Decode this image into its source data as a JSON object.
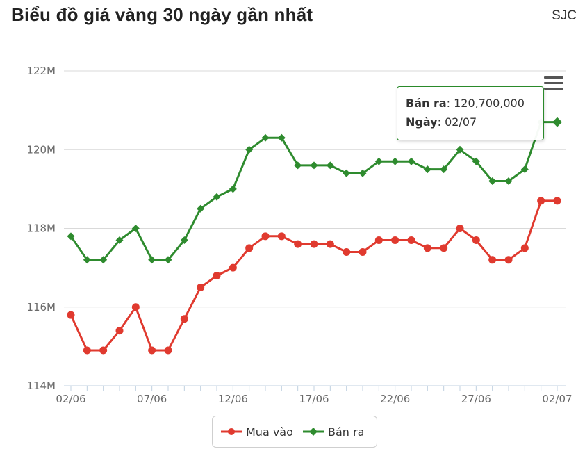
{
  "header": {
    "title": "Biểu đồ giá vàng 30 ngày gần nhất",
    "brand": "SJC"
  },
  "tooltip": {
    "series_label": "Bán ra",
    "value": "120,700,000",
    "date_label": "Ngày",
    "date": "02/07"
  },
  "colors": {
    "mua_vao": "#e03a2f",
    "ban_ra": "#2e8b2e",
    "grid": "#d9d9d9",
    "axis": "#b0c4de"
  },
  "chart_data": {
    "type": "line",
    "title": "Biểu đồ giá vàng 30 ngày gần nhất",
    "xlabel": "",
    "ylabel": "",
    "ylim": [
      114,
      122
    ],
    "y_unit": "M",
    "y_ticks": [
      "114M",
      "116M",
      "118M",
      "120M",
      "122M"
    ],
    "x_tick_labels": [
      "02/06",
      "07/06",
      "12/06",
      "17/06",
      "22/06",
      "27/06",
      "02/07"
    ],
    "x": [
      "02/06",
      "03/06",
      "04/06",
      "05/06",
      "06/06",
      "07/06",
      "08/06",
      "09/06",
      "10/06",
      "11/06",
      "12/06",
      "13/06",
      "14/06",
      "15/06",
      "16/06",
      "17/06",
      "18/06",
      "19/06",
      "20/06",
      "21/06",
      "22/06",
      "23/06",
      "24/06",
      "25/06",
      "26/06",
      "27/06",
      "28/06",
      "29/06",
      "30/06",
      "01/07",
      "02/07"
    ],
    "series": [
      {
        "name": "Mua vào",
        "color": "#e03a2f",
        "marker": "circle",
        "values": [
          115.8,
          114.9,
          114.9,
          115.4,
          116.0,
          114.9,
          114.9,
          115.7,
          116.5,
          116.8,
          117.0,
          117.5,
          117.8,
          117.8,
          117.6,
          117.6,
          117.6,
          117.4,
          117.4,
          117.7,
          117.7,
          117.7,
          117.5,
          117.5,
          118.0,
          117.7,
          117.2,
          117.2,
          117.5,
          118.7,
          118.7
        ]
      },
      {
        "name": "Bán ra",
        "color": "#2e8b2e",
        "marker": "diamond",
        "values": [
          117.8,
          117.2,
          117.2,
          117.7,
          118.0,
          117.2,
          117.2,
          117.7,
          118.5,
          118.8,
          119.0,
          120.0,
          120.3,
          120.3,
          119.6,
          119.6,
          119.6,
          119.4,
          119.4,
          119.7,
          119.7,
          119.7,
          119.5,
          119.5,
          120.0,
          119.7,
          119.2,
          119.2,
          119.5,
          120.7,
          120.7
        ]
      }
    ],
    "legend": [
      "Mua vào",
      "Bán ra"
    ],
    "legend_position": "bottom-center",
    "grid": true
  }
}
